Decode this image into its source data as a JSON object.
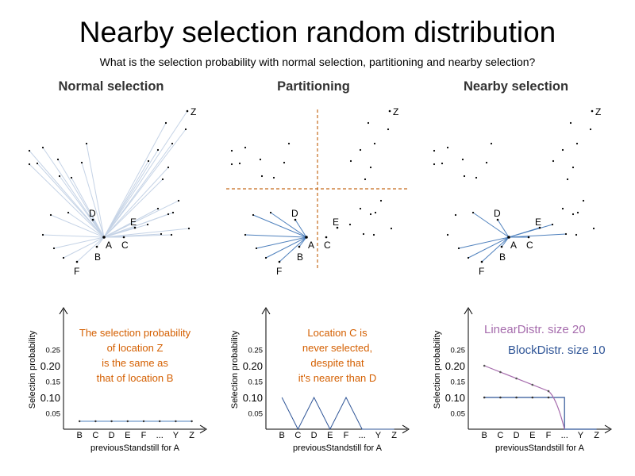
{
  "title": "Nearby selection random distribution",
  "subtitle": "What is the selection probability with normal selection, partitioning and nearby selection?",
  "sections": [
    {
      "heading": "Normal selection",
      "note_lines": [
        "The selection probability",
        "of location Z",
        "is the same as",
        "that of location B"
      ],
      "x_categories": [
        "B",
        "C",
        "D",
        "E",
        "F",
        "...",
        "Y",
        "Z"
      ],
      "x_label": "previousStandstill for A",
      "y_label": "Selection probability",
      "y_ticks": [
        "0.25",
        "0.20",
        "0.15",
        "0.10",
        "0.05"
      ]
    },
    {
      "heading": "Partitioning",
      "note_lines": [
        "Location C is",
        "never selected,",
        "despite that",
        "it's nearer than D"
      ],
      "x_categories": [
        "B",
        "C",
        "D",
        "E",
        "F",
        "...",
        "Y",
        "Z"
      ],
      "x_label": "previousStandstill for A",
      "y_label": "Selection probability",
      "y_ticks": [
        "0.25",
        "0.20",
        "0.15",
        "0.10",
        "0.05"
      ]
    },
    {
      "heading": "Nearby selection",
      "legend": [
        "LinearDistr. size 20",
        "BlockDistr. size 10"
      ],
      "x_categories": [
        "B",
        "C",
        "D",
        "E",
        "F",
        "...",
        "Y",
        "Z"
      ],
      "x_label": "previousStandstill for A",
      "y_label": "Selection probability",
      "y_ticks": [
        "0.25",
        "0.20",
        "0.15",
        "0.10",
        "0.05"
      ]
    }
  ],
  "points": {
    "A": [
      131,
      299
    ],
    "B": [
      122,
      311
    ],
    "C": [
      156,
      299
    ],
    "D": [
      117,
      277
    ],
    "E": [
      170,
      287
    ],
    "F": [
      97,
      330
    ],
    "Z": [
      236,
      140
    ],
    "left_others": [
      [
        37,
        190
      ],
      [
        37,
        207
      ],
      [
        47,
        206
      ],
      [
        54,
        186
      ],
      [
        73,
        201
      ],
      [
        75,
        222
      ],
      [
        90,
        224
      ],
      [
        103,
        205
      ],
      [
        109,
        181
      ]
    ],
    "right_others": [
      [
        209,
        155
      ],
      [
        217,
        181
      ],
      [
        199,
        189
      ],
      [
        234,
        163
      ],
      [
        187,
        203
      ],
      [
        212,
        211
      ],
      [
        205,
        226
      ],
      [
        225,
        253
      ],
      [
        64,
        271
      ],
      [
        86,
        268
      ],
      [
        199,
        263
      ],
      [
        212,
        270
      ],
      [
        54,
        296
      ],
      [
        68,
        313
      ],
      [
        80,
        325
      ],
      [
        186,
        283
      ],
      [
        203,
        295
      ],
      [
        216,
        296
      ],
      [
        238,
        288
      ],
      [
        218,
        268
      ]
    ]
  },
  "colors": {
    "edge": "#c5d3e6",
    "edge_dark": "#4f81bd",
    "dashed": "#c56a1c",
    "note": "#d45f00",
    "block_series": "#2f5597",
    "linear_series": "#a66cad"
  },
  "chart_data": [
    {
      "type": "line",
      "categories": [
        "B",
        "C",
        "D",
        "E",
        "F",
        "...",
        "Y",
        "Z"
      ],
      "series": [
        {
          "values": [
            0.025,
            0.025,
            0.025,
            0.025,
            0.025,
            0.025,
            0.025,
            0.025
          ]
        }
      ],
      "xlabel": "previousStandstill for A",
      "ylabel": "Selection probability",
      "ylim": [
        0,
        0.3
      ]
    },
    {
      "type": "line",
      "categories": [
        "B",
        "C",
        "D",
        "E",
        "F",
        "...",
        "Y",
        "Z"
      ],
      "series": [
        {
          "values": [
            0.1,
            0.0,
            0.1,
            0.0,
            0.1,
            0.0,
            0.0,
            0.0
          ]
        }
      ],
      "xlabel": "previousStandstill for A",
      "ylabel": "Selection probability",
      "ylim": [
        0,
        0.3
      ]
    },
    {
      "type": "line",
      "categories": [
        "B",
        "C",
        "D",
        "E",
        "F",
        "...",
        "Y",
        "Z"
      ],
      "series": [
        {
          "name": "LinearDistr. size 20",
          "values": [
            0.2,
            0.18,
            0.16,
            0.14,
            0.12,
            0.0,
            0.0,
            0.0
          ]
        },
        {
          "name": "BlockDistr. size 10",
          "values": [
            0.1,
            0.1,
            0.1,
            0.1,
            0.1,
            0.1,
            0.0,
            0.0
          ]
        }
      ],
      "xlabel": "previousStandstill for A",
      "ylabel": "Selection probability",
      "ylim": [
        0,
        0.3
      ]
    }
  ]
}
